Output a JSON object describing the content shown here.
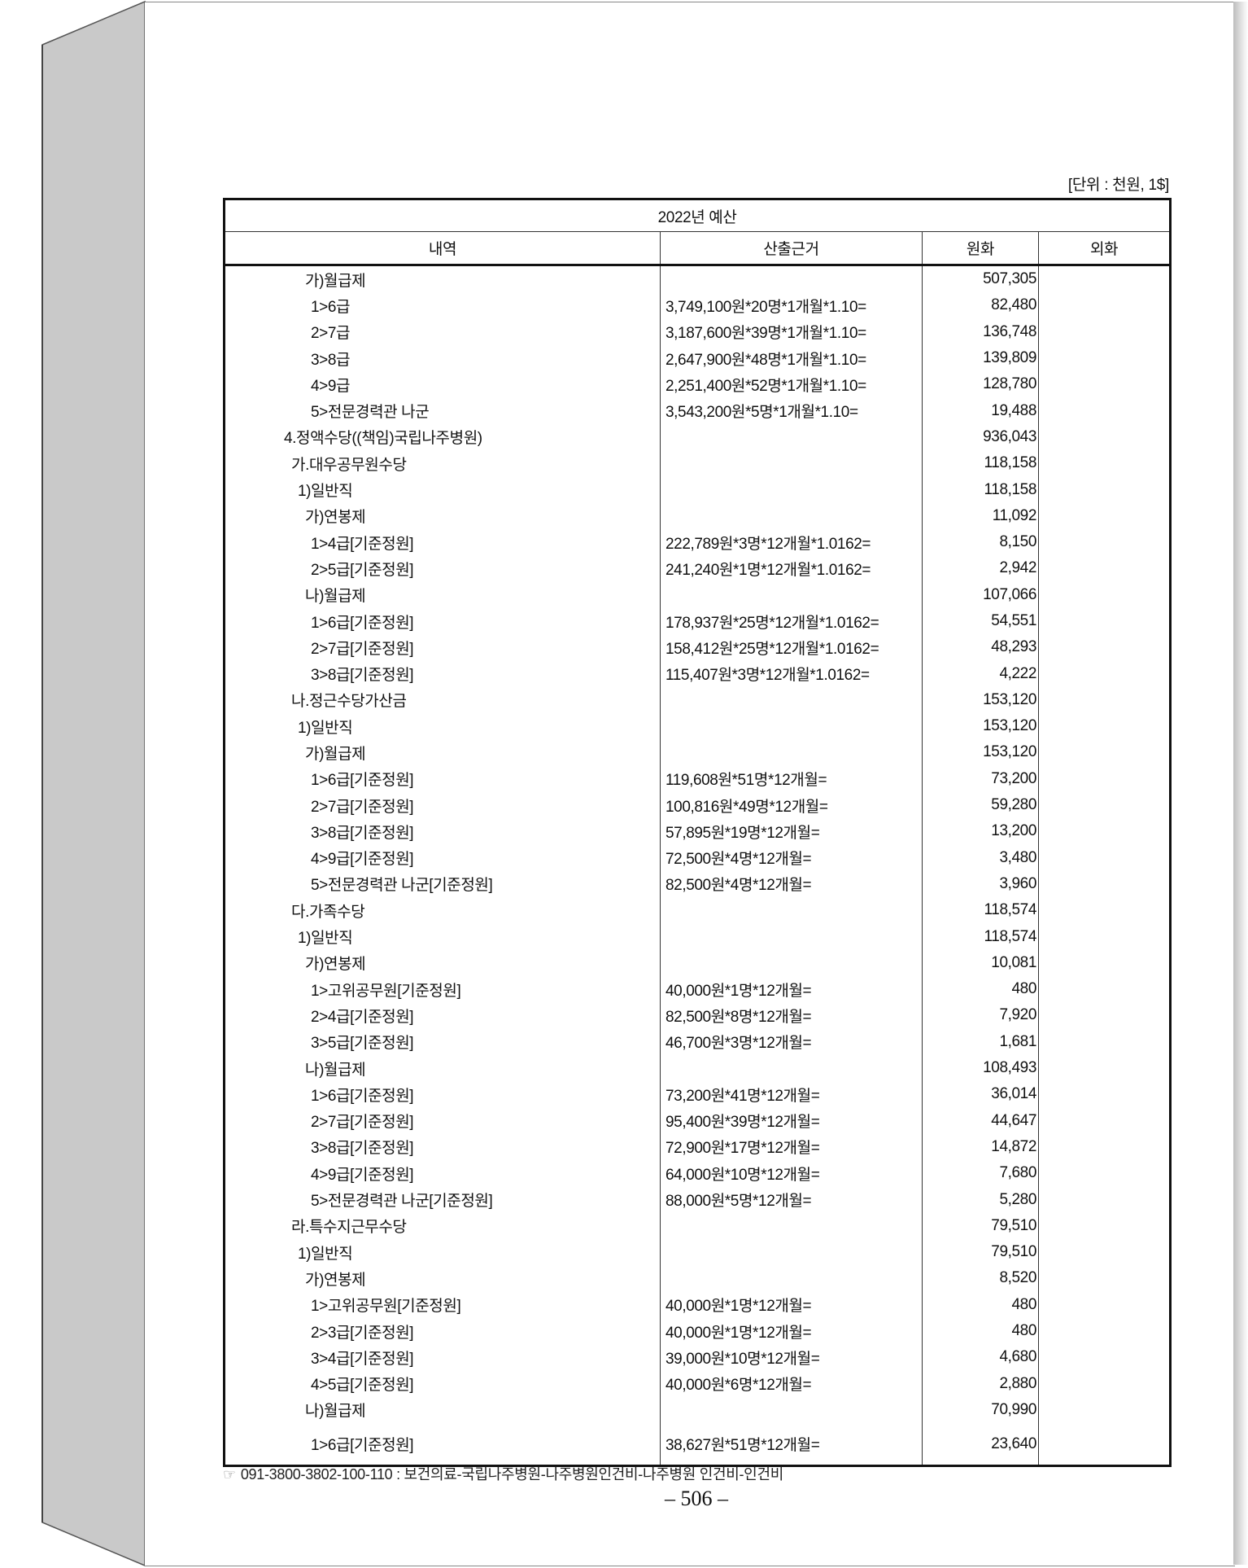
{
  "unit_note": "[단위 : 천원, 1$]",
  "table": {
    "title": "2022년 예산",
    "headers": [
      "내역",
      "산출근거",
      "원화",
      "외화"
    ],
    "rows": [
      [
        3,
        "가)월급제",
        "",
        "507,305"
      ],
      [
        4,
        "1>6급",
        "3,749,100원*20명*1개월*1.10=",
        "82,480"
      ],
      [
        4,
        "2>7급",
        "3,187,600원*39명*1개월*1.10=",
        "136,748"
      ],
      [
        4,
        "3>8급",
        "2,647,900원*48명*1개월*1.10=",
        "139,809"
      ],
      [
        4,
        "4>9급",
        "2,251,400원*52명*1개월*1.10=",
        "128,780"
      ],
      [
        4,
        "5>전문경력관 나군",
        "3,543,200원*5명*1개월*1.10=",
        "19,488"
      ],
      [
        0,
        "4.정액수당((책임)국립나주병원)",
        "",
        "936,043"
      ],
      [
        1,
        "가.대우공무원수당",
        "",
        "118,158"
      ],
      [
        2,
        "1)일반직",
        "",
        "118,158"
      ],
      [
        3,
        "가)연봉제",
        "",
        "11,092"
      ],
      [
        4,
        "1>4급[기준정원]",
        "222,789원*3명*12개월*1.0162=",
        "8,150"
      ],
      [
        4,
        "2>5급[기준정원]",
        "241,240원*1명*12개월*1.0162=",
        "2,942"
      ],
      [
        3,
        "나)월급제",
        "",
        "107,066"
      ],
      [
        4,
        "1>6급[기준정원]",
        "178,937원*25명*12개월*1.0162=",
        "54,551"
      ],
      [
        4,
        "2>7급[기준정원]",
        "158,412원*25명*12개월*1.0162=",
        "48,293"
      ],
      [
        4,
        "3>8급[기준정원]",
        "115,407원*3명*12개월*1.0162=",
        "4,222"
      ],
      [
        1,
        "나.정근수당가산금",
        "",
        "153,120"
      ],
      [
        2,
        "1)일반직",
        "",
        "153,120"
      ],
      [
        3,
        "가)월급제",
        "",
        "153,120"
      ],
      [
        4,
        "1>6급[기준정원]",
        "119,608원*51명*12개월=",
        "73,200"
      ],
      [
        4,
        "2>7급[기준정원]",
        "100,816원*49명*12개월=",
        "59,280"
      ],
      [
        4,
        "3>8급[기준정원]",
        "57,895원*19명*12개월=",
        "13,200"
      ],
      [
        4,
        "4>9급[기준정원]",
        "72,500원*4명*12개월=",
        "3,480"
      ],
      [
        4,
        "5>전문경력관 나군[기준정원]",
        "82,500원*4명*12개월=",
        "3,960"
      ],
      [
        1,
        "다.가족수당",
        "",
        "118,574"
      ],
      [
        2,
        "1)일반직",
        "",
        "118,574"
      ],
      [
        3,
        "가)연봉제",
        "",
        "10,081"
      ],
      [
        4,
        "1>고위공무원[기준정원]",
        "40,000원*1명*12개월=",
        "480"
      ],
      [
        4,
        "2>4급[기준정원]",
        "82,500원*8명*12개월=",
        "7,920"
      ],
      [
        4,
        "3>5급[기준정원]",
        "46,700원*3명*12개월=",
        "1,681"
      ],
      [
        3,
        "나)월급제",
        "",
        "108,493"
      ],
      [
        4,
        "1>6급[기준정원]",
        "73,200원*41명*12개월=",
        "36,014"
      ],
      [
        4,
        "2>7급[기준정원]",
        "95,400원*39명*12개월=",
        "44,647"
      ],
      [
        4,
        "3>8급[기준정원]",
        "72,900원*17명*12개월=",
        "14,872"
      ],
      [
        4,
        "4>9급[기준정원]",
        "64,000원*10명*12개월=",
        "7,680"
      ],
      [
        4,
        "5>전문경력관 나군[기준정원]",
        "88,000원*5명*12개월=",
        "5,280"
      ],
      [
        1,
        "라.특수지근무수당",
        "",
        "79,510"
      ],
      [
        2,
        "1)일반직",
        "",
        "79,510"
      ],
      [
        3,
        "가)연봉제",
        "",
        "8,520"
      ],
      [
        4,
        "1>고위공무원[기준정원]",
        "40,000원*1명*12개월=",
        "480"
      ],
      [
        4,
        "2>3급[기준정원]",
        "40,000원*1명*12개월=",
        "480"
      ],
      [
        4,
        "3>4급[기준정원]",
        "39,000원*10명*12개월=",
        "4,680"
      ],
      [
        4,
        "4>5급[기준정원]",
        "40,000원*6명*12개월=",
        "2,880"
      ],
      [
        3,
        "나)월급제",
        "",
        "70,990"
      ],
      [
        4,
        "1>6급[기준정원]",
        "38,627원*51명*12개월=",
        "23,640"
      ]
    ]
  },
  "footer": {
    "icon": "pointing-hand-icon",
    "text": "091-3800-3802-100-110 : 보건의료-국립나주병원-나주병원인건비-나주병원 인건비-인건비"
  },
  "page_number": "– 506 –"
}
